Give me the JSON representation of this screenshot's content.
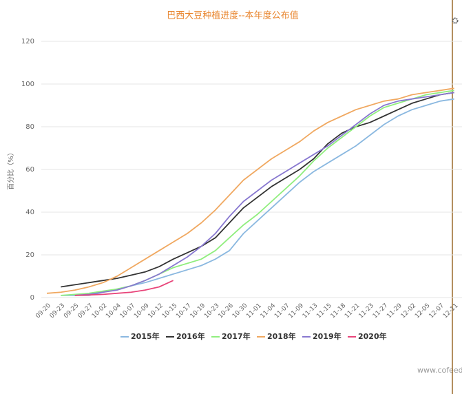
{
  "chart_data": {
    "type": "line",
    "title": "巴西大豆种植进度--本年度公布值",
    "y_label": "百分比（%）",
    "watermark": "www.cofeed.c",
    "categories": [
      "09-20",
      "09-23",
      "09-25",
      "09-27",
      "10-02",
      "10-04",
      "10-07",
      "10-09",
      "10-12",
      "10-15",
      "10-17",
      "10-19",
      "10-23",
      "10-26",
      "10-30",
      "11-01",
      "11-04",
      "11-07",
      "11-09",
      "11-13",
      "11-15",
      "11-18",
      "11-21",
      "11-23",
      "11-27",
      "11-29",
      "12-02",
      "12-05",
      "12-07",
      "12-11"
    ],
    "ylim": [
      0,
      120
    ],
    "yticks": [
      0,
      20,
      40,
      60,
      80,
      100,
      120
    ],
    "grid": true,
    "legend": "bottom",
    "series": [
      {
        "name": "2015年",
        "color": "#8ab8e0",
        "values": [
          null,
          1,
          1,
          1,
          2.5,
          4,
          5.5,
          7,
          9,
          11,
          13,
          15,
          18,
          22,
          30,
          36,
          42,
          48,
          54,
          59,
          63,
          67,
          71,
          76,
          81,
          85,
          88,
          90,
          92,
          93
        ]
      },
      {
        "name": "2016年",
        "color": "#333333",
        "values": [
          null,
          5,
          6,
          7,
          8,
          9,
          10.5,
          12,
          14.5,
          18,
          21,
          24,
          28,
          35,
          42,
          47,
          52,
          56,
          60,
          65,
          72,
          77,
          80,
          82,
          85,
          88,
          91,
          93,
          95,
          96
        ]
      },
      {
        "name": "2017年",
        "color": "#90ee7e",
        "values": [
          null,
          1,
          1.5,
          2,
          3,
          4,
          5.5,
          8,
          11,
          14,
          16,
          18,
          22,
          28,
          34,
          39,
          45,
          51,
          57,
          64,
          70,
          75,
          80,
          85,
          89,
          91,
          93,
          95,
          96,
          97
        ]
      },
      {
        "name": "2018年",
        "color": "#f0a860",
        "values": [
          2,
          2.5,
          3.5,
          5,
          7,
          10,
          14,
          18,
          22,
          26,
          30,
          35,
          41,
          48,
          55,
          60,
          65,
          69,
          73,
          78,
          82,
          85,
          88,
          90,
          92,
          93,
          95,
          96,
          97,
          98
        ]
      },
      {
        "name": "2019年",
        "color": "#8878d0",
        "values": [
          null,
          null,
          1,
          1.5,
          2.5,
          3.5,
          5.5,
          8,
          11,
          15,
          19,
          24,
          30,
          38,
          45,
          50,
          55,
          59,
          63,
          67,
          71,
          76,
          81,
          86,
          90,
          92,
          93,
          94,
          95,
          96
        ]
      },
      {
        "name": "2020年",
        "color": "#e8457a",
        "values": [
          null,
          null,
          1,
          1.2,
          1.5,
          2,
          2.5,
          3.5,
          5,
          8,
          null,
          null,
          null,
          null,
          null,
          null,
          null,
          null,
          null,
          null,
          null,
          null,
          null,
          null,
          null,
          null,
          null,
          null,
          null,
          null
        ]
      }
    ]
  }
}
